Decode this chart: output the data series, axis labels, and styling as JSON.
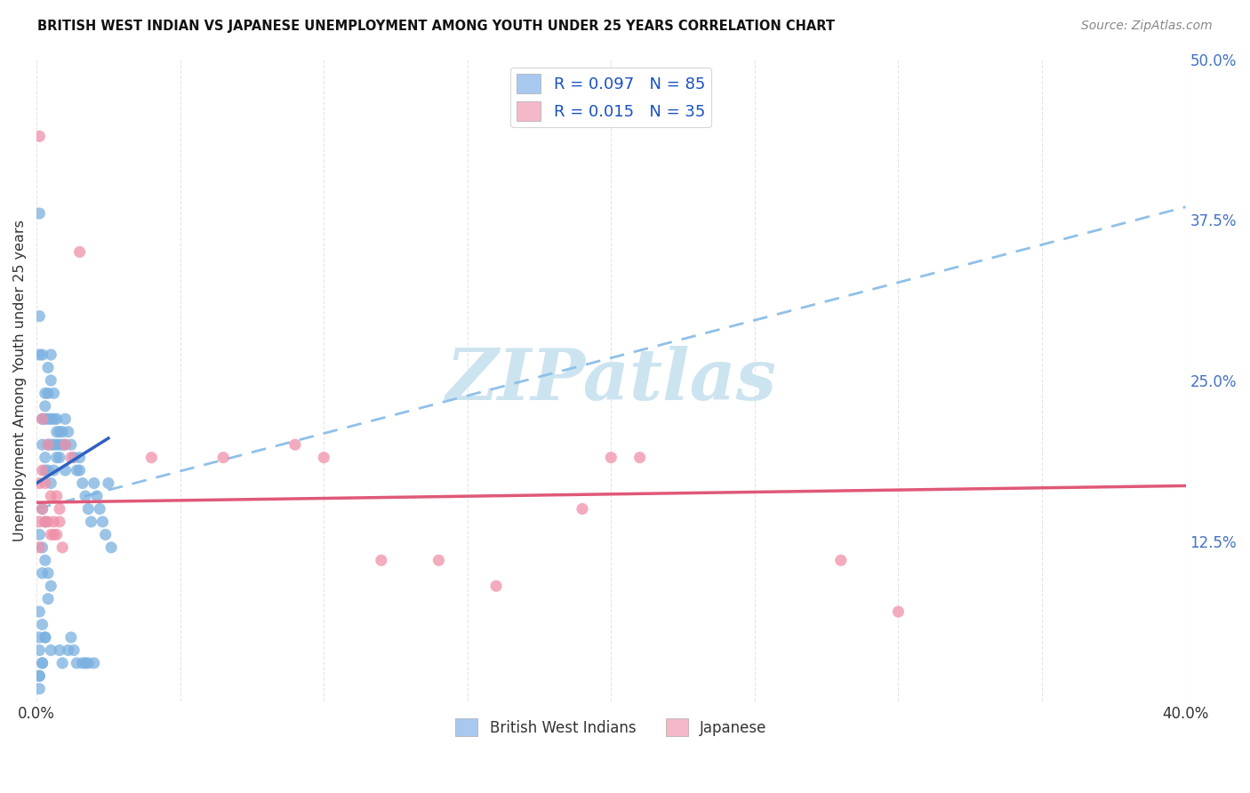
{
  "title": "BRITISH WEST INDIAN VS JAPANESE UNEMPLOYMENT AMONG YOUTH UNDER 25 YEARS CORRELATION CHART",
  "source": "Source: ZipAtlas.com",
  "ylabel": "Unemployment Among Youth under 25 years",
  "x_min": 0.0,
  "x_max": 0.4,
  "y_min": 0.0,
  "y_max": 0.5,
  "x_ticks": [
    0.0,
    0.05,
    0.1,
    0.15,
    0.2,
    0.25,
    0.3,
    0.35,
    0.4
  ],
  "y_ticks_right": [
    0.0,
    0.125,
    0.25,
    0.375,
    0.5
  ],
  "y_tick_labels_right": [
    "",
    "12.5%",
    "25.0%",
    "37.5%",
    "50.0%"
  ],
  "legend1_label": "R = 0.097   N = 85",
  "legend2_label": "R = 0.015   N = 35",
  "legend_color_blue": "#a8c8f0",
  "legend_color_pink": "#f5b8c8",
  "scatter_color_blue": "#7ab0e0",
  "scatter_color_pink": "#f090a8",
  "trendline_blue_solid_color": "#3060c0",
  "trendline_blue_dash_color": "#90c0e8",
  "trendline_pink_color": "#e05878",
  "watermark": "ZIPatlas",
  "watermark_color": "#cce4f0",
  "blue_x": [
    0.001,
    0.001,
    0.001,
    0.001,
    0.001,
    0.002,
    0.002,
    0.002,
    0.002,
    0.002,
    0.003,
    0.003,
    0.003,
    0.003,
    0.003,
    0.003,
    0.004,
    0.004,
    0.004,
    0.004,
    0.004,
    0.005,
    0.005,
    0.005,
    0.005,
    0.005,
    0.005,
    0.006,
    0.006,
    0.006,
    0.006,
    0.007,
    0.007,
    0.007,
    0.007,
    0.008,
    0.008,
    0.008,
    0.008,
    0.009,
    0.009,
    0.009,
    0.01,
    0.01,
    0.01,
    0.011,
    0.011,
    0.012,
    0.012,
    0.013,
    0.013,
    0.014,
    0.014,
    0.015,
    0.015,
    0.016,
    0.016,
    0.017,
    0.017,
    0.018,
    0.018,
    0.019,
    0.02,
    0.02,
    0.021,
    0.022,
    0.023,
    0.024,
    0.025,
    0.026,
    0.001,
    0.002,
    0.003,
    0.004,
    0.005,
    0.002,
    0.003,
    0.001,
    0.004,
    0.002,
    0.003,
    0.001,
    0.002,
    0.001,
    0.001
  ],
  "blue_y": [
    0.38,
    0.3,
    0.27,
    0.05,
    0.02,
    0.27,
    0.22,
    0.2,
    0.1,
    0.03,
    0.24,
    0.23,
    0.22,
    0.19,
    0.18,
    0.05,
    0.26,
    0.24,
    0.22,
    0.2,
    0.18,
    0.27,
    0.25,
    0.22,
    0.2,
    0.17,
    0.04,
    0.24,
    0.22,
    0.2,
    0.18,
    0.22,
    0.21,
    0.2,
    0.19,
    0.21,
    0.2,
    0.19,
    0.04,
    0.21,
    0.2,
    0.03,
    0.22,
    0.2,
    0.18,
    0.21,
    0.04,
    0.2,
    0.05,
    0.19,
    0.04,
    0.18,
    0.03,
    0.19,
    0.18,
    0.17,
    0.03,
    0.16,
    0.03,
    0.15,
    0.03,
    0.14,
    0.17,
    0.03,
    0.16,
    0.15,
    0.14,
    0.13,
    0.17,
    0.12,
    0.13,
    0.12,
    0.11,
    0.1,
    0.09,
    0.15,
    0.14,
    0.07,
    0.08,
    0.06,
    0.05,
    0.04,
    0.03,
    0.02,
    0.01
  ],
  "pink_x": [
    0.001,
    0.001,
    0.001,
    0.001,
    0.002,
    0.002,
    0.002,
    0.003,
    0.003,
    0.004,
    0.004,
    0.005,
    0.005,
    0.006,
    0.006,
    0.007,
    0.007,
    0.008,
    0.008,
    0.009,
    0.01,
    0.012,
    0.015,
    0.04,
    0.065,
    0.09,
    0.1,
    0.12,
    0.14,
    0.16,
    0.19,
    0.2,
    0.21,
    0.28,
    0.3
  ],
  "pink_y": [
    0.44,
    0.17,
    0.14,
    0.12,
    0.22,
    0.18,
    0.15,
    0.17,
    0.14,
    0.2,
    0.14,
    0.16,
    0.13,
    0.14,
    0.13,
    0.16,
    0.13,
    0.15,
    0.14,
    0.12,
    0.2,
    0.19,
    0.35,
    0.19,
    0.19,
    0.2,
    0.19,
    0.11,
    0.11,
    0.09,
    0.15,
    0.19,
    0.19,
    0.11,
    0.07
  ],
  "trendline_blue_x0": 0.0,
  "trendline_blue_y0": 0.17,
  "trendline_blue_x1": 0.025,
  "trendline_blue_y1": 0.205,
  "trendline_dash_x0": 0.0,
  "trendline_dash_y0": 0.15,
  "trendline_dash_x1": 0.4,
  "trendline_dash_y1": 0.385,
  "trendline_pink_x0": 0.0,
  "trendline_pink_y0": 0.155,
  "trendline_pink_x1": 0.4,
  "trendline_pink_y1": 0.168
}
